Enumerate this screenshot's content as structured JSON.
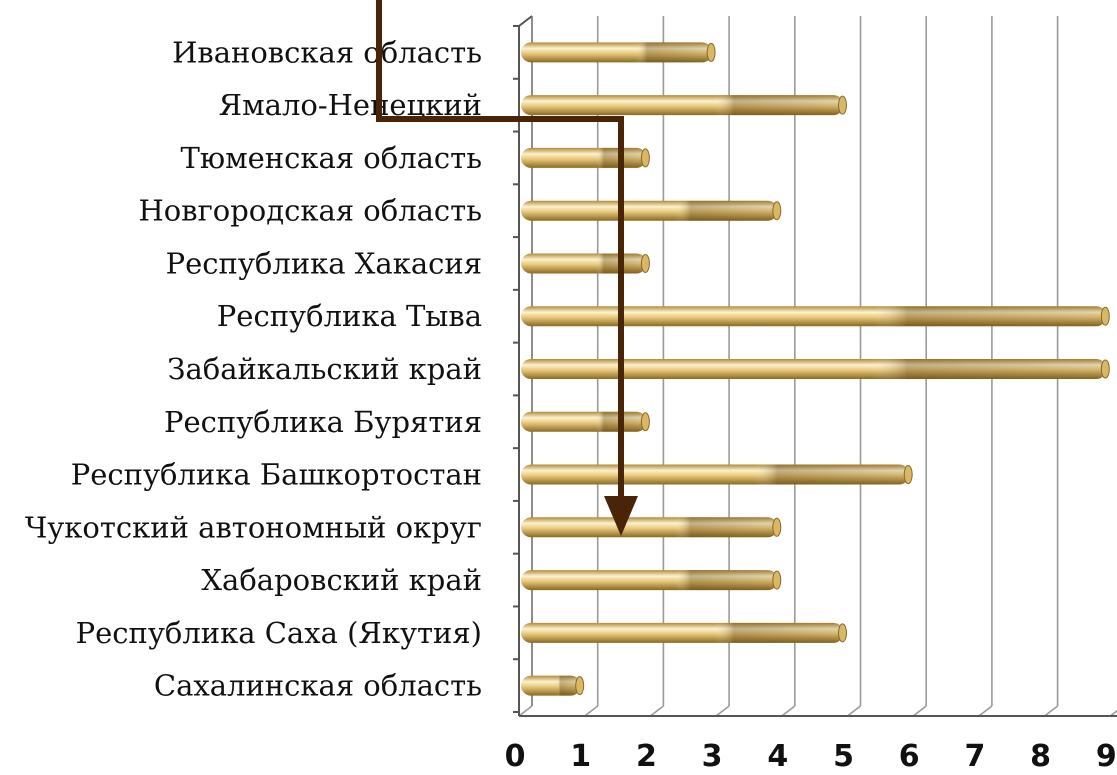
{
  "chart_data": {
    "type": "bar",
    "orientation": "horizontal",
    "categories": [
      "Ивановская область",
      "Ямало-Ненецкий",
      "Тюменская область",
      "Новгородская область",
      "Республика Хакасия",
      "Республика Тыва",
      "Забайкальский край",
      "Республика Бурятия",
      "Республика Башкортостан",
      "Чукотский автономный округ",
      "Хабаровский край",
      "Республика Саха (Якутия)",
      "Сахалинская область"
    ],
    "values": [
      3,
      5,
      2,
      4,
      2,
      9,
      9,
      2,
      6,
      4,
      4,
      5,
      1
    ],
    "x_ticks": [
      "0",
      "1",
      "2",
      "3",
      "4",
      "5",
      "6",
      "7",
      "8",
      "9"
    ],
    "xlim": [
      0,
      9
    ],
    "grid": true,
    "title": "",
    "xlabel": "",
    "ylabel": "",
    "colors": {
      "bar_light": "#fbf0c8",
      "bar_mid": "#e3c375",
      "bar_dark": "#9b7a2c",
      "grid": "#9a9a9a",
      "arrow": "#4a2407"
    }
  }
}
